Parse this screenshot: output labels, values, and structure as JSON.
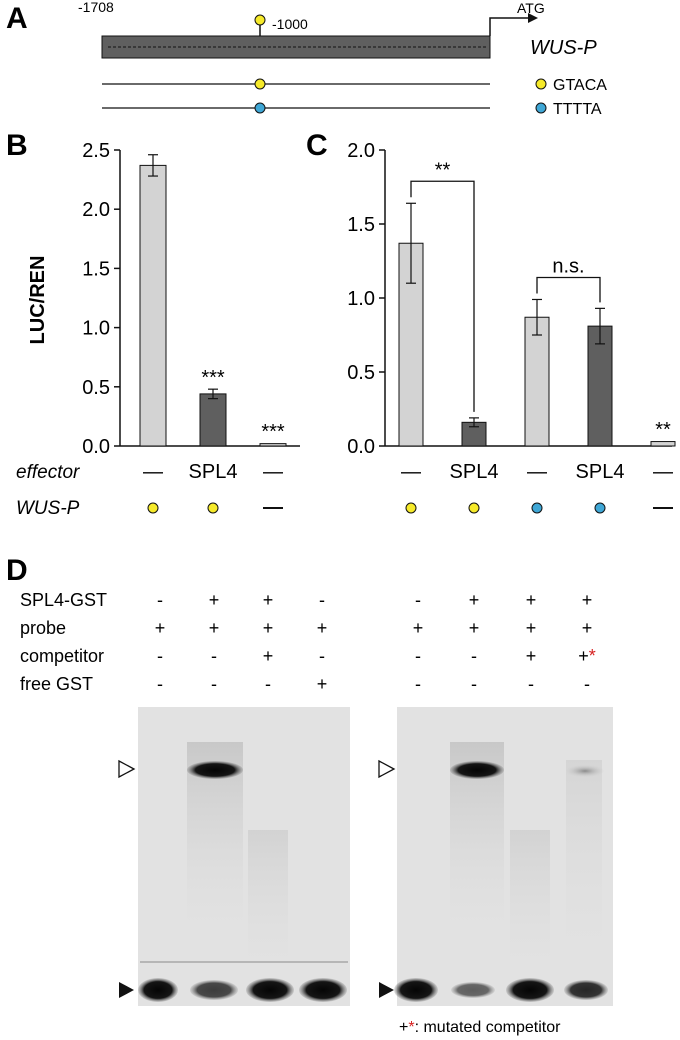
{
  "panels": {
    "a": "A",
    "b": "B",
    "c": "C",
    "d": "D"
  },
  "panel_a": {
    "start_label": "-1708",
    "site_label": "-1000",
    "atg_label": "ATG",
    "gene_label": "WUS-P",
    "legend": [
      {
        "label": "GTACA",
        "color": "#f6ea2a"
      },
      {
        "label": "TTTTA",
        "color": "#3fa7d6"
      }
    ]
  },
  "colors": {
    "light_bar": "#d3d3d3",
    "dark_bar": "#5f5f5f",
    "promoter_box": "#5f5f5f",
    "yellow_site": "#f6ea2a",
    "blue_site": "#3fa7d6",
    "sig_red": "#d62020"
  },
  "chart_data": [
    {
      "panel": "B",
      "type": "bar",
      "ylabel": "LUC/REN",
      "ylim": [
        0,
        2.5
      ],
      "yticks": [
        "0.0",
        "0.5",
        "1.0",
        "1.5",
        "2.0",
        "2.5"
      ],
      "row_labels": [
        "effector",
        "WUS-P"
      ],
      "effector": [
        "—",
        "SPL4",
        "—"
      ],
      "wusp_markers": [
        "yellow",
        "yellow",
        "none"
      ],
      "values": [
        2.37,
        0.44,
        0.02
      ],
      "errors": [
        0.09,
        0.04,
        0.005
      ],
      "bar_colors": [
        "light",
        "dark",
        "light"
      ],
      "significance": [
        "",
        "***",
        "***"
      ]
    },
    {
      "panel": "C",
      "type": "bar",
      "ylim": [
        0,
        2.0
      ],
      "yticks": [
        "0.0",
        "0.5",
        "1.0",
        "1.5",
        "2.0"
      ],
      "effector": [
        "—",
        "SPL4",
        "—",
        "SPL4",
        "—"
      ],
      "wusp_markers": [
        "yellow",
        "yellow",
        "blue",
        "blue",
        "none"
      ],
      "values": [
        1.37,
        0.16,
        0.87,
        0.81,
        0.03
      ],
      "errors": [
        0.27,
        0.03,
        0.12,
        0.12,
        0.005
      ],
      "bar_colors": [
        "light",
        "dark",
        "light",
        "dark",
        "light"
      ],
      "significance": [
        "",
        "",
        "",
        "",
        "**"
      ],
      "brackets": [
        {
          "from": 0,
          "to": 1,
          "label": "**"
        },
        {
          "from": 2,
          "to": 3,
          "label": "n.s."
        }
      ]
    }
  ],
  "panel_d": {
    "rows": [
      "SPL4-GST",
      "probe",
      "competitor",
      "free GST"
    ],
    "left_gel": [
      [
        "-",
        "+",
        "+",
        "-"
      ],
      [
        "+",
        "+",
        "+",
        "+"
      ],
      [
        "-",
        "-",
        "+",
        "-"
      ],
      [
        "-",
        "-",
        "-",
        "+"
      ]
    ],
    "right_gel": [
      [
        "-",
        "+",
        "+",
        "+"
      ],
      [
        "+",
        "+",
        "+",
        "+"
      ],
      [
        "-",
        "-",
        "+",
        "+"
      ],
      [
        "-",
        "-",
        "-",
        "-"
      ]
    ],
    "mutated_star": "*",
    "footnote_plus": "+",
    "footnote_star": "*",
    "footnote_text": ": mutated competitor"
  }
}
